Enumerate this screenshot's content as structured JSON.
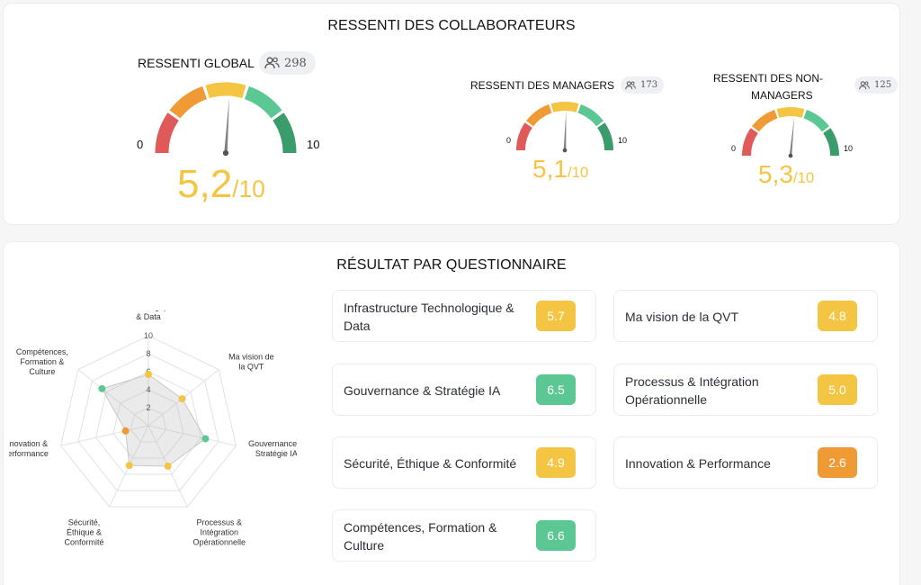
{
  "colors": {
    "red": "#e05a5a",
    "orange": "#ef9a35",
    "yellow": "#f4c542",
    "lightgreen": "#5bc792",
    "green": "#3a9c6a",
    "needle": "#808080"
  },
  "header": {
    "title": "RESSENTI DES COLLABORATEURS"
  },
  "gauges": {
    "global": {
      "label": "RESSENTI GLOBAL",
      "count": "298",
      "value": 5.2,
      "score": "5,2",
      "denominator": "/10",
      "min": "0",
      "max": "10"
    },
    "managers": {
      "label": "RESSENTI DES MANAGERS",
      "count": "173",
      "value": 5.1,
      "score": "5,1",
      "denominator": "/10",
      "min": "0",
      "max": "10"
    },
    "nonmanagers": {
      "label_line1": "RESSENTI DES NON-",
      "label_line2": "MANAGERS",
      "count": "125",
      "value": 5.3,
      "score": "5,3",
      "denominator": "/10",
      "min": "0",
      "max": "10"
    }
  },
  "results": {
    "title": "RÉSULTAT PAR QUESTIONNAIRE",
    "cards": [
      {
        "line1": "Infrastructure Technologique &",
        "line2": "Data",
        "score": "5.7",
        "color": "#f4c542"
      },
      {
        "line1": "Ma vision de la QVT",
        "line2": "",
        "score": "4.8",
        "color": "#f4c542"
      },
      {
        "line1": "Gouvernance & Stratégie IA",
        "line2": "",
        "score": "6.5",
        "color": "#5bc792"
      },
      {
        "line1": "Processus & Intégration",
        "line2": "Opérationnelle",
        "score": "5.0",
        "color": "#f4c542"
      },
      {
        "line1": "Sécurité, Éthique & Conformité",
        "line2": "",
        "score": "4.9",
        "color": "#f4c542"
      },
      {
        "line1": "Innovation & Performance",
        "line2": "",
        "score": "2.6",
        "color": "#ef9a35"
      },
      {
        "line1": "Compétences, Formation &",
        "line2": "Culture",
        "score": "6.6",
        "color": "#5bc792"
      }
    ]
  },
  "chart_data": {
    "type": "radar",
    "axes": [
      {
        "lines": [
          "Infrastructure",
          "Technologique",
          "& Data"
        ],
        "value": 5.7,
        "color": "#f4c542"
      },
      {
        "lines": [
          "Ma vision de",
          "la QVT"
        ],
        "value": 4.8,
        "color": "#f4c542"
      },
      {
        "lines": [
          "Gouvernance &",
          "Stratégie IA"
        ],
        "value": 6.5,
        "color": "#5bc792"
      },
      {
        "lines": [
          "Processus &",
          "Intégration",
          "Opérationnelle"
        ],
        "value": 5.0,
        "color": "#f4c542"
      },
      {
        "lines": [
          "Sécurité,",
          "Éthique &",
          "Conformité"
        ],
        "value": 4.9,
        "color": "#f4c542"
      },
      {
        "lines": [
          "Innovation &",
          "Performance"
        ],
        "value": 2.6,
        "color": "#ef9a35"
      },
      {
        "lines": [
          "Compétences,",
          "Formation &",
          "Culture"
        ],
        "value": 6.6,
        "color": "#5bc792"
      }
    ],
    "ticks": [
      "2",
      "4",
      "6",
      "8",
      "10"
    ],
    "range": [
      0,
      10
    ],
    "grid": true
  }
}
